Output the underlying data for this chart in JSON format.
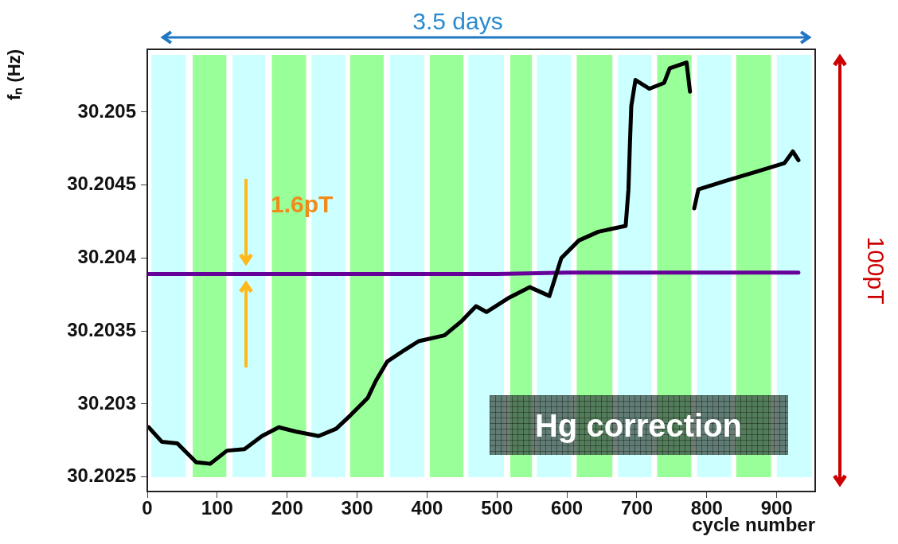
{
  "chart_data": {
    "type": "line",
    "xlabel": "cycle number",
    "ylabel": "fₙ (Hz)",
    "xlim": [
      0,
      955
    ],
    "xticks": [
      0,
      100,
      200,
      300,
      400,
      500,
      600,
      700,
      800,
      900
    ],
    "ylim": [
      30.2024,
      30.20543
    ],
    "yticks": [
      {
        "value": 30.2025,
        "label": "30.2025"
      },
      {
        "value": 30.203,
        "label": "30.203"
      },
      {
        "value": 30.2035,
        "label": "30.2035"
      },
      {
        "value": 30.204,
        "label": "30.204"
      },
      {
        "value": 30.2045,
        "label": "30.2045"
      },
      {
        "value": 30.205,
        "label": "30.205"
      }
    ],
    "grid": false,
    "legend": false,
    "marker": "none",
    "line_style": "solid",
    "bands": [
      {
        "axis": "x",
        "from": 6,
        "to": 55,
        "color": "#ccffff"
      },
      {
        "axis": "x",
        "from": 65,
        "to": 113,
        "color": "#99ff99"
      },
      {
        "axis": "x",
        "from": 122,
        "to": 169,
        "color": "#ccffff"
      },
      {
        "axis": "x",
        "from": 178,
        "to": 227,
        "color": "#99ff99"
      },
      {
        "axis": "x",
        "from": 235,
        "to": 283,
        "color": "#ccffff"
      },
      {
        "axis": "x",
        "from": 290,
        "to": 338,
        "color": "#99ff99"
      },
      {
        "axis": "x",
        "from": 347,
        "to": 396,
        "color": "#ccffff"
      },
      {
        "axis": "x",
        "from": 404,
        "to": 452,
        "color": "#99ff99"
      },
      {
        "axis": "x",
        "from": 459,
        "to": 510,
        "color": "#ccffff"
      },
      {
        "axis": "x",
        "from": 519,
        "to": 550,
        "color": "#99ff99"
      },
      {
        "axis": "x",
        "from": 557,
        "to": 606,
        "color": "#ccffff"
      },
      {
        "axis": "x",
        "from": 614,
        "to": 665,
        "color": "#99ff99"
      },
      {
        "axis": "x",
        "from": 673,
        "to": 721,
        "color": "#ccffff"
      },
      {
        "axis": "x",
        "from": 729,
        "to": 778,
        "color": "#99ff99"
      },
      {
        "axis": "x",
        "from": 786,
        "to": 835,
        "color": "#ccffff"
      },
      {
        "axis": "x",
        "from": 842,
        "to": 892,
        "color": "#99ff99"
      },
      {
        "axis": "x",
        "from": 900,
        "to": 950,
        "color": "#ccffff"
      }
    ],
    "series": [
      {
        "color": "#000000",
        "x": [
          2,
          21,
          43,
          70,
          90,
          114,
          139,
          164,
          188,
          213,
          245,
          270,
          290,
          315,
          327,
          343,
          368,
          388,
          425,
          450,
          470,
          485,
          518,
          547,
          575,
          592,
          617,
          645,
          684,
          688,
          690,
          692,
          698,
          718,
          739,
          747,
          771,
          776,
          779,
          782,
          788,
          828,
          870,
          911,
          923,
          931
        ],
        "values": [
          30.20284,
          30.20274,
          30.20273,
          30.2026,
          30.20259,
          30.20268,
          30.20269,
          30.20278,
          30.20284,
          30.20281,
          30.20278,
          30.20283,
          30.20292,
          30.20304,
          30.20316,
          30.20329,
          30.20337,
          30.20343,
          30.20347,
          30.20357,
          30.20367,
          30.20363,
          30.20373,
          30.2038,
          30.20374,
          30.204,
          30.20412,
          30.20418,
          30.20422,
          30.20447,
          30.20477,
          30.20504,
          30.20522,
          30.20516,
          30.2052,
          30.2053,
          30.20534,
          30.20514,
          null,
          30.20434,
          30.20447,
          30.20453,
          30.20459,
          30.20465,
          30.20473,
          30.20467
        ]
      },
      {
        "color": "#660099",
        "x": [
          0,
          100,
          200,
          300,
          400,
          500,
          600,
          700,
          800,
          900,
          931
        ],
        "values": [
          30.20389,
          30.20389,
          30.20389,
          30.20389,
          30.20389,
          30.20389,
          30.2039,
          30.2039,
          30.2039,
          30.2039,
          30.2039
        ]
      }
    ],
    "annotations": [
      "3.5 days",
      "100pT",
      "1.6pT",
      "Hg correction"
    ]
  }
}
